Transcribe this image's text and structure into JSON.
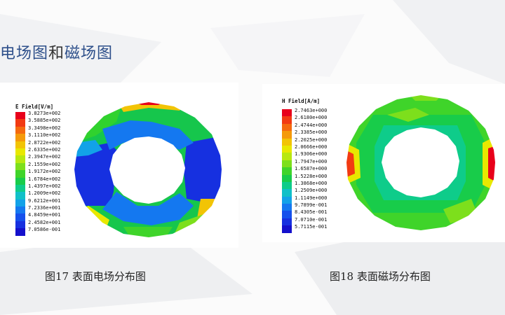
{
  "slide": {
    "title_blue_1": "电场图",
    "title_dark": "和",
    "title_blue_2": "磁场图"
  },
  "e_field": {
    "legend_title": "E Field[V/m]",
    "labels": [
      "3.8273e+002",
      "3.5885e+002",
      "3.3498e+002",
      "3.1110e+002",
      "2.8722e+002",
      "2.6335e+002",
      "2.3947e+002",
      "2.1559e+002",
      "1.9172e+002",
      "1.6784e+002",
      "1.4397e+002",
      "1.2009e+002",
      "9.6212e+001",
      "7.2336e+001",
      "4.8459e+001",
      "2.4582e+001",
      "7.0586e-001"
    ],
    "caption": "图17 表面电场分布图"
  },
  "h_field": {
    "legend_title": "H Field[A/m]",
    "labels": [
      "2.7463e+000",
      "2.6180e+000",
      "2.4744e+000",
      "2.3385e+000",
      "2.2025e+000",
      "2.0666e+000",
      "1.9306e+000",
      "1.7947e+000",
      "1.6587e+000",
      "1.5228e+000",
      "1.3868e+000",
      "1.2509e+000",
      "1.1149e+000",
      "9.7899e-001",
      "8.4305e-001",
      "7.0710e-001",
      "5.7115e-001"
    ],
    "caption": "图18 表面磁场分布图"
  },
  "colors": {
    "scale": [
      "#e8001a",
      "#f23a12",
      "#f56a0e",
      "#f59a0a",
      "#f2c405",
      "#e8e800",
      "#b8e810",
      "#7ddf1c",
      "#3fd42a",
      "#18cc4a",
      "#0ecc8a",
      "#10c0c8",
      "#12a2e8",
      "#1478f0",
      "#1550ec",
      "#1630e0",
      "#1410cc"
    ],
    "title_blue": "#2d4f8a"
  }
}
